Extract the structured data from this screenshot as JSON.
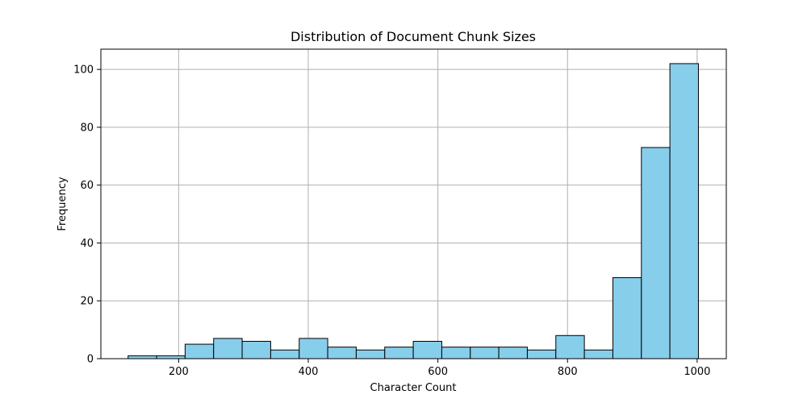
{
  "chart_data": {
    "type": "bar",
    "title": "Distribution of Document Chunk Sizes",
    "xlabel": "Character Count",
    "ylabel": "Frequency",
    "bar_color": "#87ceeb",
    "edge_color": "#000000",
    "grid": true,
    "xlim": [
      80,
      1045
    ],
    "ylim": [
      0,
      107
    ],
    "xticks": [
      200,
      400,
      600,
      800,
      1000
    ],
    "yticks": [
      0,
      20,
      40,
      60,
      80,
      100
    ],
    "bins": [
      {
        "x0": 122,
        "x1": 166,
        "count": 1
      },
      {
        "x0": 166,
        "x1": 210,
        "count": 1
      },
      {
        "x0": 210,
        "x1": 254,
        "count": 5
      },
      {
        "x0": 254,
        "x1": 298,
        "count": 7
      },
      {
        "x0": 298,
        "x1": 342,
        "count": 6
      },
      {
        "x0": 342,
        "x1": 386,
        "count": 3
      },
      {
        "x0": 386,
        "x1": 430,
        "count": 7
      },
      {
        "x0": 430,
        "x1": 474,
        "count": 4
      },
      {
        "x0": 474,
        "x1": 518,
        "count": 3
      },
      {
        "x0": 518,
        "x1": 562,
        "count": 4
      },
      {
        "x0": 562,
        "x1": 606,
        "count": 6
      },
      {
        "x0": 606,
        "x1": 650,
        "count": 4
      },
      {
        "x0": 650,
        "x1": 694,
        "count": 4
      },
      {
        "x0": 694,
        "x1": 738,
        "count": 4
      },
      {
        "x0": 738,
        "x1": 782,
        "count": 3
      },
      {
        "x0": 782,
        "x1": 826,
        "count": 8
      },
      {
        "x0": 826,
        "x1": 870,
        "count": 3
      },
      {
        "x0": 870,
        "x1": 914,
        "count": 28
      },
      {
        "x0": 914,
        "x1": 958,
        "count": 73
      },
      {
        "x0": 958,
        "x1": 1002,
        "count": 102
      }
    ]
  }
}
